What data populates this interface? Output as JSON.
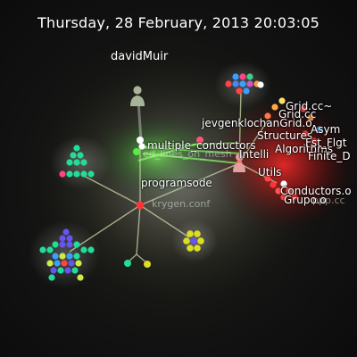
{
  "timestamp": "Thursday, 28 February, 2013 20:03:05",
  "user": {
    "name": "davidMuir"
  },
  "labels": {
    "multiple_conductors": "multiple_conductors",
    "programsode": "programsode",
    "jevgenklochan": "jevgenklochanGrid.o",
    "structures": "Structures",
    "grid_cc": "Grid.cc~",
    "grid_cc2": "Grid.cc",
    "algorithms": "Algorithms",
    "utils": "Utils",
    "conductors": "Conductors.o",
    "grupo": "Grupo.o",
    "asym": "Asym",
    "fst_flgt": "Fst_Flgt",
    "finite_d": "Finite_D",
    "jmcell": "Intelli",
    "lines": "ed_lines_on_mesh",
    "ppm": "ppp.cc",
    "krgen": "krygen.conf"
  },
  "colors": {
    "edge": "#c9d8a8",
    "edge_active": "#8cff6a",
    "hub": "#ff3333",
    "red_glow": "#ff2020",
    "green_glow": "#4cff40"
  },
  "icons": {
    "user": "user-avatar-icon"
  }
}
